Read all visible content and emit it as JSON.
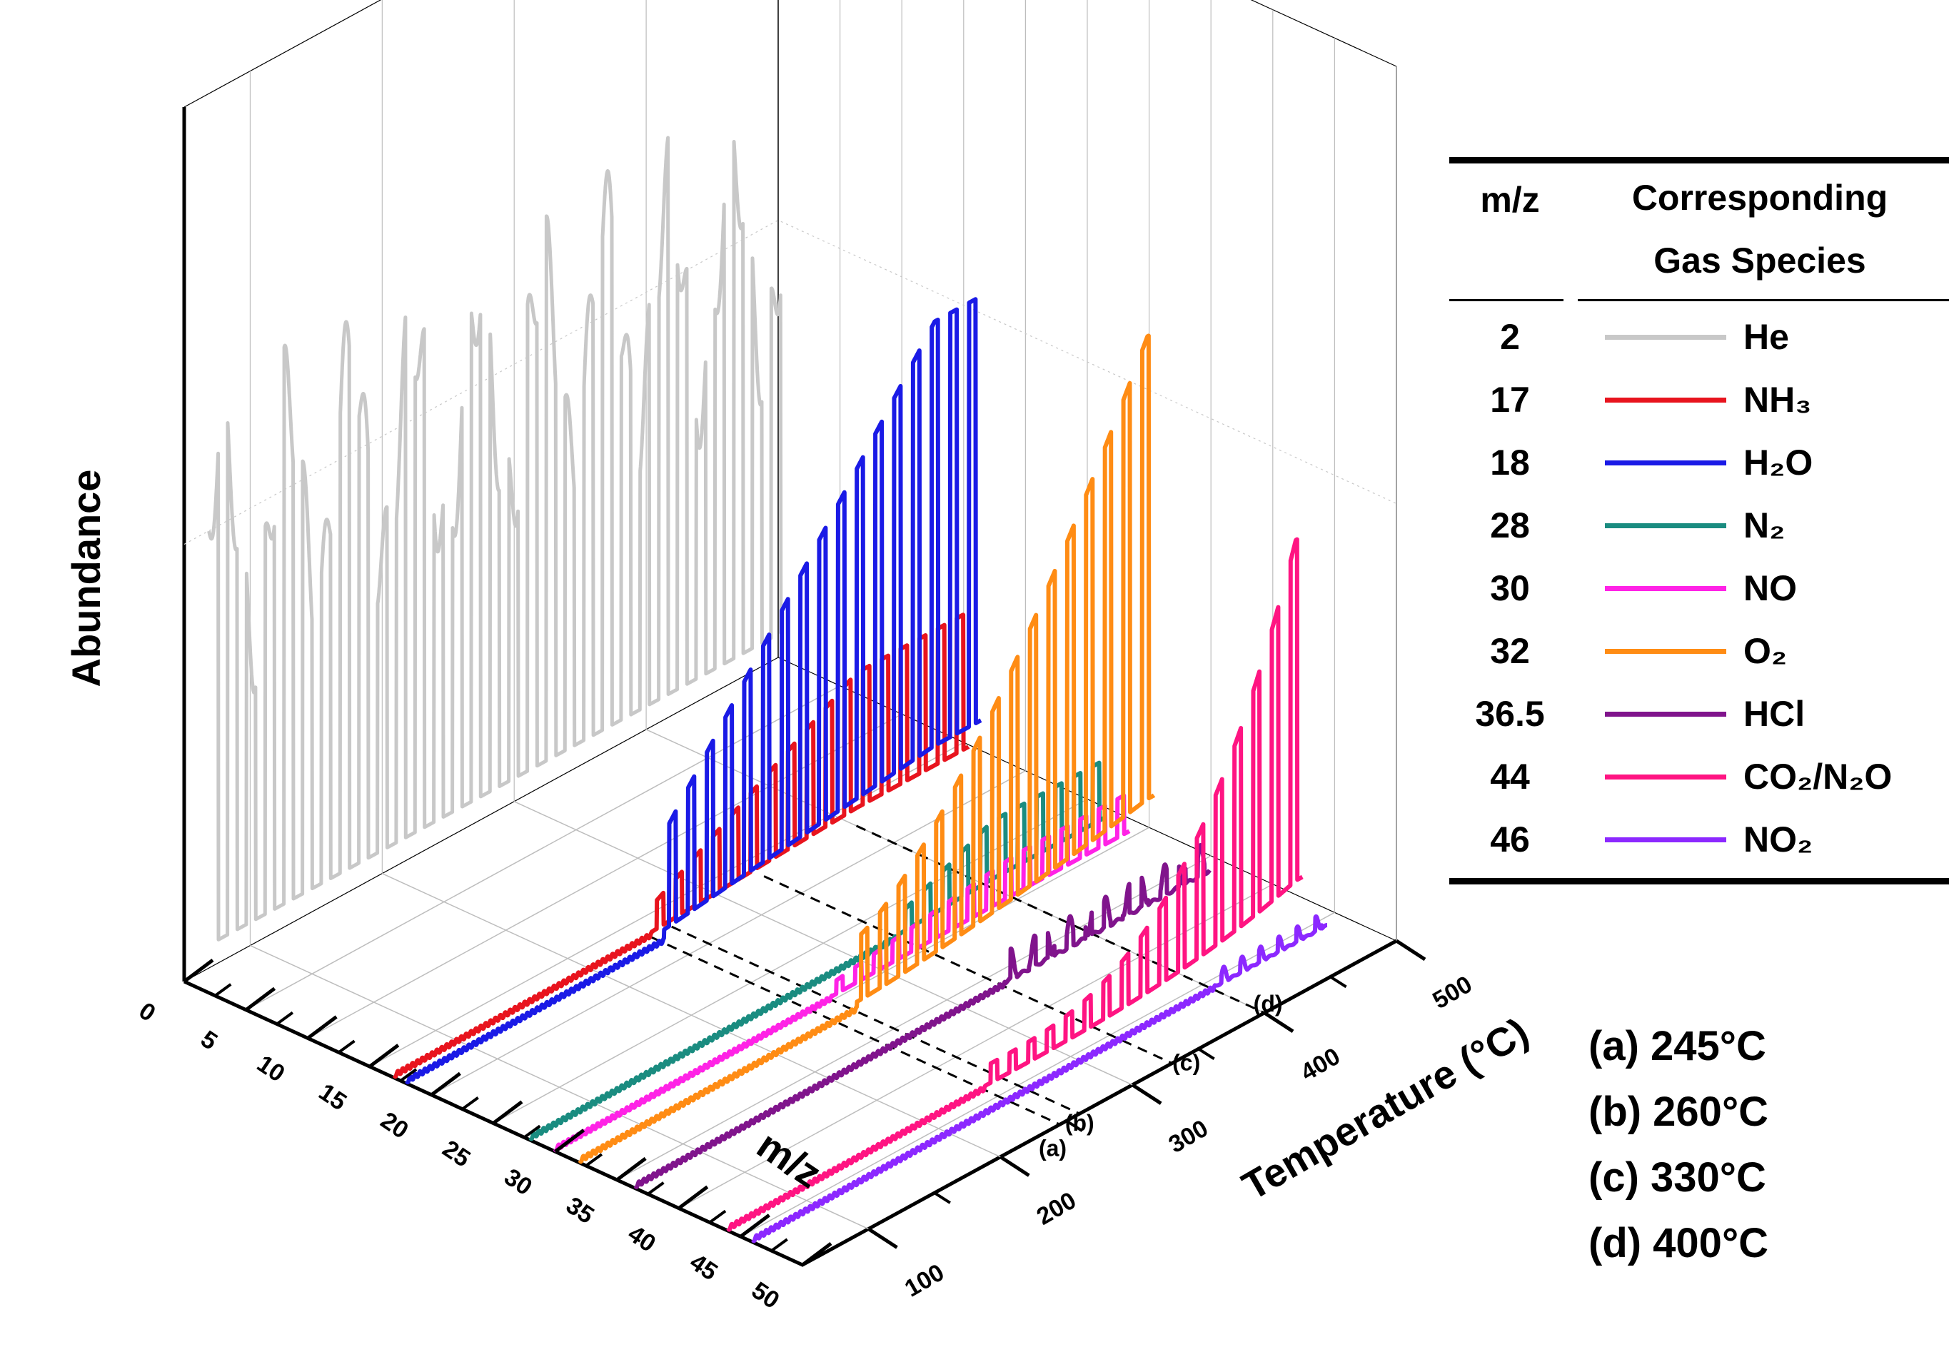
{
  "chart_data": {
    "type": "line",
    "subtype": "3d-waterfall",
    "axes": {
      "x": {
        "label": "m/z",
        "range": [
          0,
          50
        ],
        "ticks": [
          "0",
          "5",
          "10",
          "15",
          "20",
          "25",
          "30",
          "35",
          "40",
          "45",
          "50"
        ]
      },
      "y": {
        "label": "Temperature (°C)",
        "range": [
          50,
          500
        ],
        "ticks": [
          "100",
          "200",
          "300",
          "400",
          "500"
        ]
      },
      "z": {
        "label": "Abundance"
      }
    },
    "series": [
      {
        "mz": 2,
        "name": "He",
        "color": "#c8c8c8",
        "trace": "constant-high"
      },
      {
        "mz": 17,
        "name": "NH3",
        "color": "#e8141e",
        "onset_c": 245,
        "peak_c": 400
      },
      {
        "mz": 18,
        "name": "H2O",
        "color": "#1a1ae6",
        "onset_c": 245,
        "peak_c": 450
      },
      {
        "mz": 28,
        "name": "N2",
        "color": "#1a8c80",
        "onset_c": 330,
        "peak_c": 400
      },
      {
        "mz": 30,
        "name": "NO",
        "color": "#ff22e6",
        "onset_c": 260,
        "peak_c": 400
      },
      {
        "mz": 32,
        "name": "O2",
        "color": "#ff8c14",
        "onset_c": 260,
        "peak_c": 480
      },
      {
        "mz": 36.5,
        "name": "HCl",
        "color": "#80148c",
        "onset_c": 330
      },
      {
        "mz": 44,
        "name": "CO2/N2O",
        "color": "#ff1482",
        "onset_c": 245,
        "peak_c": 480
      },
      {
        "mz": 46,
        "name": "NO2",
        "color": "#8c28ff",
        "onset_c": 400
      }
    ],
    "markers": [
      {
        "letter": "(a)",
        "temperature_c": 245
      },
      {
        "letter": "(b)",
        "temperature_c": 260
      },
      {
        "letter": "(c)",
        "temperature_c": 330
      },
      {
        "letter": "(d)",
        "temperature_c": 400
      }
    ]
  },
  "legend": {
    "header_mz": "m/z",
    "header_species_line1": "Corresponding",
    "header_species_line2": "Gas Species",
    "rows": [
      {
        "mz": "2",
        "gas": "He",
        "color": "#c8c8c8"
      },
      {
        "mz": "17",
        "gas": "NH₃",
        "color": "#e8141e"
      },
      {
        "mz": "18",
        "gas": "H₂O",
        "color": "#1a1ae6"
      },
      {
        "mz": "28",
        "gas": "N₂",
        "color": "#1a8c80"
      },
      {
        "mz": "30",
        "gas": "NO",
        "color": "#ff22e6"
      },
      {
        "mz": "32",
        "gas": "O₂",
        "color": "#ff8c14"
      },
      {
        "mz": "36.5",
        "gas": "HCl",
        "color": "#80148c"
      },
      {
        "mz": "44",
        "gas": "CO₂/N₂O",
        "color": "#ff1482"
      },
      {
        "mz": "46",
        "gas": "NO₂",
        "color": "#8c28ff"
      }
    ]
  },
  "temperature_notes": [
    "(a) 245°C",
    "(b) 260°C",
    "(c) 330°C",
    "(d) 400°C"
  ]
}
